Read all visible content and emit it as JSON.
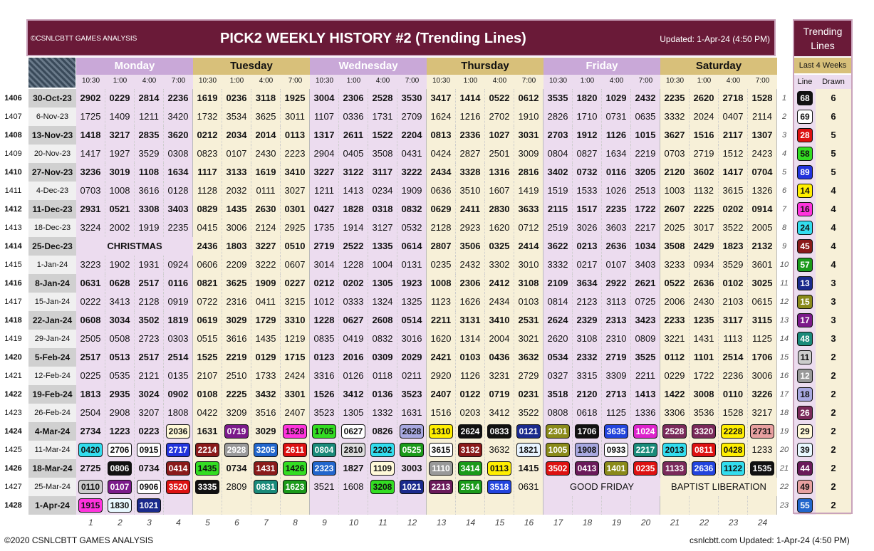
{
  "header": {
    "brand": "©CSNLCBTT GAMES ANALYSIS",
    "title": "PICK2 WEEKLY HISTORY #2 (Trending Lines)",
    "updated": "Updated: 1-Apr-24 (4:50 PM)"
  },
  "days": [
    "Monday",
    "Tuesday",
    "Wednesday",
    "Thursday",
    "Friday",
    "Saturday"
  ],
  "times": [
    "10:30",
    "1:00",
    "4:00",
    "7:00"
  ],
  "rows": [
    {
      "no": "1406",
      "date": "30-Oct-23",
      "bold": true,
      "vals": [
        "2902",
        "0229",
        "2814",
        "2236",
        "1619",
        "0236",
        "3118",
        "1925",
        "3004",
        "2306",
        "2528",
        "3530",
        "3417",
        "1414",
        "0522",
        "0612",
        "3535",
        "1820",
        "1029",
        "2432",
        "2235",
        "2620",
        "2718",
        "1528"
      ]
    },
    {
      "no": "1407",
      "date": "6-Nov-23",
      "bold": false,
      "vals": [
        "1725",
        "1409",
        "1211",
        "3420",
        "1732",
        "3534",
        "3625",
        "3011",
        "1107",
        "0336",
        "1731",
        "2709",
        "1624",
        "1216",
        "2702",
        "1910",
        "2826",
        "1710",
        "0731",
        "0635",
        "3332",
        "2024",
        "0407",
        "2114"
      ]
    },
    {
      "no": "1408",
      "date": "13-Nov-23",
      "bold": true,
      "vals": [
        "1418",
        "3217",
        "2835",
        "3620",
        "0212",
        "2034",
        "2014",
        "0113",
        "1317",
        "2611",
        "1522",
        "2204",
        "0813",
        "2336",
        "1027",
        "3031",
        "2703",
        "1912",
        "1126",
        "1015",
        "3627",
        "1516",
        "2117",
        "1307"
      ]
    },
    {
      "no": "1409",
      "date": "20-Nov-23",
      "bold": false,
      "vals": [
        "1417",
        "1927",
        "3529",
        "0308",
        "0823",
        "0107",
        "2430",
        "2223",
        "2904",
        "0405",
        "3508",
        "0431",
        "0424",
        "2827",
        "2501",
        "3009",
        "0804",
        "0827",
        "1634",
        "2219",
        "0703",
        "2719",
        "1512",
        "2423"
      ]
    },
    {
      "no": "1410",
      "date": "27-Nov-23",
      "bold": true,
      "vals": [
        "3236",
        "3019",
        "1108",
        "1634",
        "1117",
        "3133",
        "1619",
        "3410",
        "3227",
        "3122",
        "3117",
        "3222",
        "2434",
        "3328",
        "1316",
        "2816",
        "3402",
        "0732",
        "0116",
        "3205",
        "2120",
        "3602",
        "1417",
        "0704"
      ]
    },
    {
      "no": "1411",
      "date": "4-Dec-23",
      "bold": false,
      "vals": [
        "0703",
        "1008",
        "3616",
        "0128",
        "1128",
        "2032",
        "0111",
        "3027",
        "1211",
        "1413",
        "0234",
        "1909",
        "0636",
        "3510",
        "1607",
        "1419",
        "1519",
        "1533",
        "1026",
        "2513",
        "1003",
        "1132",
        "3615",
        "1326"
      ]
    },
    {
      "no": "1412",
      "date": "11-Dec-23",
      "bold": true,
      "vals": [
        "2931",
        "0521",
        "3308",
        "3403",
        "0829",
        "1435",
        "2630",
        "0301",
        "0427",
        "1828",
        "0318",
        "0832",
        "0629",
        "2411",
        "2830",
        "3633",
        "2115",
        "1517",
        "2235",
        "1722",
        "2607",
        "2225",
        "0202",
        "0914"
      ]
    },
    {
      "no": "1413",
      "date": "18-Dec-23",
      "bold": false,
      "vals": [
        "3224",
        "2002",
        "1919",
        "2235",
        "0415",
        "3006",
        "2124",
        "2925",
        "1735",
        "1914",
        "3127",
        "0532",
        "2128",
        "2923",
        "1620",
        "0712",
        "2519",
        "3026",
        "3603",
        "2217",
        "2025",
        "3017",
        "3522",
        "2005"
      ]
    },
    {
      "no": "1414",
      "date": "25-Dec-23",
      "bold": true,
      "holidayMon": "CHRISTMAS",
      "vals": [
        "",
        "",
        "",
        "",
        "2436",
        "1803",
        "3227",
        "0510",
        "2719",
        "2522",
        "1335",
        "0614",
        "2807",
        "3506",
        "0325",
        "2414",
        "3622",
        "0213",
        "2636",
        "1034",
        "3508",
        "2429",
        "1823",
        "2132"
      ]
    },
    {
      "no": "1415",
      "date": "1-Jan-24",
      "bold": false,
      "vals": [
        "3223",
        "1902",
        "1931",
        "0924",
        "0606",
        "2209",
        "3222",
        "0607",
        "3014",
        "1228",
        "1004",
        "0131",
        "0235",
        "2432",
        "3302",
        "3010",
        "3332",
        "0217",
        "0107",
        "3403",
        "3233",
        "0934",
        "3529",
        "3601"
      ]
    },
    {
      "no": "1416",
      "date": "8-Jan-24",
      "bold": true,
      "vals": [
        "0631",
        "0628",
        "2517",
        "0116",
        "0821",
        "3625",
        "1909",
        "0227",
        "0212",
        "0202",
        "1305",
        "1923",
        "1008",
        "2306",
        "2412",
        "3108",
        "2109",
        "3634",
        "2922",
        "2621",
        "0522",
        "2636",
        "0102",
        "3025"
      ]
    },
    {
      "no": "1417",
      "date": "15-Jan-24",
      "bold": false,
      "vals": [
        "0222",
        "3413",
        "2128",
        "0919",
        "0722",
        "2316",
        "0411",
        "3215",
        "1012",
        "0333",
        "1324",
        "1325",
        "1123",
        "1626",
        "2434",
        "0103",
        "0814",
        "2123",
        "3113",
        "0725",
        "2006",
        "2430",
        "2103",
        "0615"
      ]
    },
    {
      "no": "1418",
      "date": "22-Jan-24",
      "bold": true,
      "vals": [
        "0608",
        "3034",
        "3502",
        "1819",
        "0619",
        "3029",
        "1729",
        "3310",
        "1228",
        "0627",
        "2608",
        "0514",
        "2211",
        "3131",
        "3410",
        "2531",
        "2624",
        "2329",
        "2313",
        "3423",
        "2233",
        "1235",
        "3117",
        "3115"
      ]
    },
    {
      "no": "1419",
      "date": "29-Jan-24",
      "bold": false,
      "vals": [
        "2505",
        "0508",
        "2723",
        "0303",
        "0515",
        "3616",
        "1435",
        "1219",
        "0835",
        "0419",
        "0832",
        "3016",
        "1620",
        "1314",
        "2004",
        "3021",
        "2620",
        "3108",
        "2310",
        "0809",
        "3221",
        "1431",
        "1113",
        "1125"
      ]
    },
    {
      "no": "1420",
      "date": "5-Feb-24",
      "bold": true,
      "vals": [
        "2517",
        "0513",
        "2517",
        "2514",
        "1525",
        "2219",
        "0129",
        "1715",
        "0123",
        "2016",
        "0309",
        "2029",
        "2421",
        "0103",
        "0436",
        "3632",
        "0534",
        "2332",
        "2719",
        "3525",
        "0112",
        "1101",
        "2514",
        "1706"
      ]
    },
    {
      "no": "1421",
      "date": "12-Feb-24",
      "bold": false,
      "vals": [
        "0225",
        "0535",
        "2121",
        "0135",
        "2107",
        "2510",
        "1733",
        "2424",
        "3316",
        "0126",
        "0118",
        "0211",
        "2920",
        "1126",
        "3231",
        "2729",
        "0327",
        "3315",
        "3309",
        "2211",
        "0229",
        "1722",
        "2236",
        "3006"
      ]
    },
    {
      "no": "1422",
      "date": "19-Feb-24",
      "bold": true,
      "vals": [
        "1813",
        "2935",
        "3024",
        "0902",
        "0108",
        "2225",
        "3432",
        "3301",
        "1526",
        "3412",
        "0136",
        "3523",
        "2407",
        "0122",
        "0719",
        "0231",
        "3518",
        "2120",
        "2713",
        "1413",
        "1422",
        "3008",
        "0110",
        "3226"
      ]
    },
    {
      "no": "1423",
      "date": "26-Feb-24",
      "bold": false,
      "vals": [
        "2504",
        "2908",
        "3207",
        "1808",
        "0422",
        "3209",
        "3516",
        "2407",
        "3523",
        "1305",
        "1332",
        "1631",
        "1516",
        "0203",
        "3412",
        "3522",
        "0808",
        "0618",
        "1125",
        "1336",
        "3306",
        "3536",
        "1528",
        "3217"
      ]
    },
    {
      "no": "1424",
      "date": "4-Mar-24",
      "bold": true,
      "vals": [
        "2734",
        "1223",
        "0223",
        "2036",
        "1631",
        "0719",
        "3029",
        "1528",
        "1705",
        "0627",
        "0826",
        "2628",
        "1310",
        "2624",
        "0833",
        "0121",
        "2301",
        "1706",
        "3635",
        "1024",
        "2528",
        "3320",
        "2228",
        "2731"
      ]
    },
    {
      "no": "1425",
      "date": "11-Mar-24",
      "bold": false,
      "vals": [
        "0420",
        "2706",
        "0915",
        "2717",
        "2214",
        "2928",
        "3205",
        "2611",
        "0804",
        "2810",
        "2202",
        "0525",
        "3615",
        "3132",
        "3632",
        "1821",
        "1005",
        "1908",
        "0933",
        "2217",
        "2013",
        "0811",
        "0428",
        "1233"
      ]
    },
    {
      "no": "1426",
      "date": "18-Mar-24",
      "bold": true,
      "vals": [
        "2725",
        "0806",
        "0734",
        "0414",
        "1435",
        "0734",
        "1431",
        "1426",
        "2323",
        "1827",
        "1109",
        "3003",
        "1110",
        "3414",
        "0113",
        "1415",
        "3502",
        "0413",
        "1401",
        "0235",
        "1133",
        "2636",
        "1122",
        "1535"
      ]
    },
    {
      "no": "1427",
      "date": "25-Mar-24",
      "bold": false,
      "holidayFri": "GOOD FRIDAY",
      "holidaySat": "BAPTIST LIBERATION",
      "vals": [
        "0110",
        "0107",
        "0906",
        "3520",
        "3335",
        "2809",
        "0831",
        "1623",
        "3521",
        "1608",
        "3208",
        "1021",
        "2213",
        "2514",
        "3518",
        "0631",
        "",
        "",
        "",
        "",
        "",
        "",
        "",
        ""
      ]
    },
    {
      "no": "1428",
      "date": "1-Apr-24",
      "bold": true,
      "vals": [
        "1915",
        "1830",
        "1021",
        "",
        "",
        "",
        "",
        "",
        "",
        "",
        "",
        "",
        "",
        "",
        "",
        "",
        "",
        "",
        "",
        "",
        "",
        "",
        "",
        ""
      ]
    }
  ],
  "boxes": {
    "1424": {
      "3": [
        "#fff9d8",
        "#111"
      ],
      "5": [
        "#7b1a8a",
        "#fff"
      ],
      "7": [
        "#ff33dd",
        "#111"
      ],
      "8": [
        "#33dd22",
        "#111"
      ],
      "9": [
        "#fff",
        "#111"
      ],
      "11": [
        "#a8a8e0",
        "#111"
      ],
      "12": [
        "#ffee00",
        "#111"
      ],
      "13": [
        "#111",
        "#fff"
      ],
      "14": [
        "#111",
        "#fff"
      ],
      "15": [
        "#1a2a8c",
        "#fff"
      ],
      "16": [
        "#8a8a1a",
        "#fff"
      ],
      "17": [
        "#111",
        "#fff"
      ],
      "18": [
        "#2244dd",
        "#fff"
      ],
      "19": [
        "#dd22cc",
        "#fff"
      ],
      "20": [
        "#7a2a5a",
        "#fff"
      ],
      "21": [
        "#7a2a5a",
        "#fff"
      ],
      "22": [
        "#ffee00",
        "#111"
      ],
      "23": [
        "#e8a0a0",
        "#111"
      ]
    },
    "1425": {
      "0": [
        "#33ddee",
        "#111"
      ],
      "1": [
        "#fff",
        "#111"
      ],
      "2": [
        "#fff",
        "#111"
      ],
      "3": [
        "#2233dd",
        "#fff"
      ],
      "4": [
        "#8a1a1a",
        "#fff"
      ],
      "5": [
        "#999",
        "#fff"
      ],
      "6": [
        "#2266cc",
        "#fff"
      ],
      "7": [
        "#dd1111",
        "#fff"
      ],
      "8": [
        "#1a8a7a",
        "#fff"
      ],
      "9": [
        "#ddd",
        "#111"
      ],
      "10": [
        "#33ddee",
        "#111"
      ],
      "11": [
        "#1a9a1a",
        "#fff"
      ],
      "12": [
        "#fff",
        "#111"
      ],
      "13": [
        "#8a1a1a",
        "#fff"
      ],
      "15": [
        "#e8f4ff",
        "#111"
      ],
      "16": [
        "#8a8a1a",
        "#fff"
      ],
      "17": [
        "#a8a8e0",
        "#111"
      ],
      "18": [
        "#fff",
        "#111"
      ],
      "19": [
        "#1a8a7a",
        "#fff"
      ],
      "20": [
        "#33ddee",
        "#111"
      ],
      "21": [
        "#dd1111",
        "#fff"
      ],
      "22": [
        "#ffee00",
        "#111"
      ]
    },
    "1426": {
      "1": [
        "#111",
        "#fff"
      ],
      "3": [
        "#8a1a1a",
        "#fff"
      ],
      "4": [
        "#33dd22",
        "#111"
      ],
      "6": [
        "#8a1a1a",
        "#fff"
      ],
      "7": [
        "#33dd22",
        "#111"
      ],
      "8": [
        "#2266cc",
        "#fff"
      ],
      "10": [
        "#fff9d8",
        "#111"
      ],
      "12": [
        "#999",
        "#fff"
      ],
      "13": [
        "#1a9a1a",
        "#fff"
      ],
      "14": [
        "#ffee00",
        "#111"
      ],
      "16": [
        "#dd1111",
        "#fff"
      ],
      "17": [
        "#6a1a5a",
        "#fff"
      ],
      "18": [
        "#8a8a1a",
        "#fff"
      ],
      "19": [
        "#dd1111",
        "#fff"
      ],
      "20": [
        "#7a2a5a",
        "#fff"
      ],
      "21": [
        "#2244dd",
        "#fff"
      ],
      "22": [
        "#33ddee",
        "#111"
      ],
      "23": [
        "#111",
        "#fff"
      ]
    },
    "1427": {
      "0": [
        "#ccc",
        "#111"
      ],
      "1": [
        "#7b1a8a",
        "#fff"
      ],
      "2": [
        "#fff",
        "#111"
      ],
      "3": [
        "#dd1111",
        "#fff"
      ],
      "4": [
        "#111",
        "#fff"
      ],
      "6": [
        "#1a8a7a",
        "#fff"
      ],
      "7": [
        "#1a9a1a",
        "#fff"
      ],
      "10": [
        "#33dd22",
        "#111"
      ],
      "11": [
        "#1a2a8c",
        "#fff"
      ],
      "12": [
        "#6a1a5a",
        "#fff"
      ],
      "13": [
        "#1a9a1a",
        "#fff"
      ],
      "14": [
        "#2244dd",
        "#fff"
      ]
    },
    "1428": {
      "0": [
        "#ff33dd",
        "#111"
      ],
      "1": [
        "#e8f8ff",
        "#111"
      ],
      "2": [
        "#1a2a8c",
        "#fff"
      ]
    }
  },
  "colnums": [
    "1",
    "2",
    "3",
    "4",
    "5",
    "6",
    "7",
    "8",
    "9",
    "10",
    "11",
    "12",
    "13",
    "14",
    "15",
    "16",
    "17",
    "18",
    "19",
    "20",
    "21",
    "22",
    "23",
    "24"
  ],
  "trending": {
    "title": "Trending Lines",
    "subtitle": "Last 4 Weeks",
    "col_line": "Line",
    "col_drawn": "Drawn",
    "items": [
      {
        "n": "1",
        "line": "68",
        "drawn": "6",
        "bg": "#111",
        "fg": "#fff"
      },
      {
        "n": "2",
        "line": "69",
        "drawn": "6",
        "bg": "#fff",
        "fg": "#111"
      },
      {
        "n": "3",
        "line": "28",
        "drawn": "5",
        "bg": "#dd1111",
        "fg": "#fff"
      },
      {
        "n": "4",
        "line": "58",
        "drawn": "5",
        "bg": "#33dd22",
        "fg": "#111"
      },
      {
        "n": "5",
        "line": "89",
        "drawn": "5",
        "bg": "#2233dd",
        "fg": "#fff"
      },
      {
        "n": "6",
        "line": "14",
        "drawn": "4",
        "bg": "#ffee00",
        "fg": "#111"
      },
      {
        "n": "7",
        "line": "16",
        "drawn": "4",
        "bg": "#ff33dd",
        "fg": "#111"
      },
      {
        "n": "8",
        "line": "24",
        "drawn": "4",
        "bg": "#33ddee",
        "fg": "#111"
      },
      {
        "n": "9",
        "line": "45",
        "drawn": "4",
        "bg": "#8a1a1a",
        "fg": "#fff"
      },
      {
        "n": "10",
        "line": "57",
        "drawn": "4",
        "bg": "#1a9a1a",
        "fg": "#fff"
      },
      {
        "n": "11",
        "line": "13",
        "drawn": "3",
        "bg": "#1a2a8c",
        "fg": "#fff"
      },
      {
        "n": "12",
        "line": "15",
        "drawn": "3",
        "bg": "#8a8a1a",
        "fg": "#fff"
      },
      {
        "n": "13",
        "line": "17",
        "drawn": "3",
        "bg": "#7b1a8a",
        "fg": "#fff"
      },
      {
        "n": "14",
        "line": "48",
        "drawn": "3",
        "bg": "#1a8a7a",
        "fg": "#fff"
      },
      {
        "n": "15",
        "line": "11",
        "drawn": "2",
        "bg": "#ccc",
        "fg": "#111"
      },
      {
        "n": "16",
        "line": "12",
        "drawn": "2",
        "bg": "#999",
        "fg": "#fff"
      },
      {
        "n": "17",
        "line": "18",
        "drawn": "2",
        "bg": "#a8a8e0",
        "fg": "#111"
      },
      {
        "n": "18",
        "line": "26",
        "drawn": "2",
        "bg": "#7a2a5a",
        "fg": "#fff"
      },
      {
        "n": "19",
        "line": "29",
        "drawn": "2",
        "bg": "#fff9d8",
        "fg": "#111"
      },
      {
        "n": "20",
        "line": "39",
        "drawn": "2",
        "bg": "#e8f8ff",
        "fg": "#111"
      },
      {
        "n": "21",
        "line": "44",
        "drawn": "2",
        "bg": "#6a1a5a",
        "fg": "#fff"
      },
      {
        "n": "22",
        "line": "49",
        "drawn": "2",
        "bg": "#e8a0a0",
        "fg": "#111"
      },
      {
        "n": "23",
        "line": "55",
        "drawn": "2",
        "bg": "#2266cc",
        "fg": "#fff"
      }
    ]
  },
  "footer": {
    "left": "©2020 CSNLCBTT GAMES ANALYSIS",
    "right": "csnlcbtt.com Updated: 1-Apr-24 (4:50 PM)"
  },
  "colors": {
    "banner": "#6a1a38",
    "dayPurple": "#c9a8d8",
    "dayGold": "#d8c07a",
    "cellPurple": "#ecdcef",
    "cellCream": "#f7f0d8",
    "accent": "#c9a3bb"
  }
}
